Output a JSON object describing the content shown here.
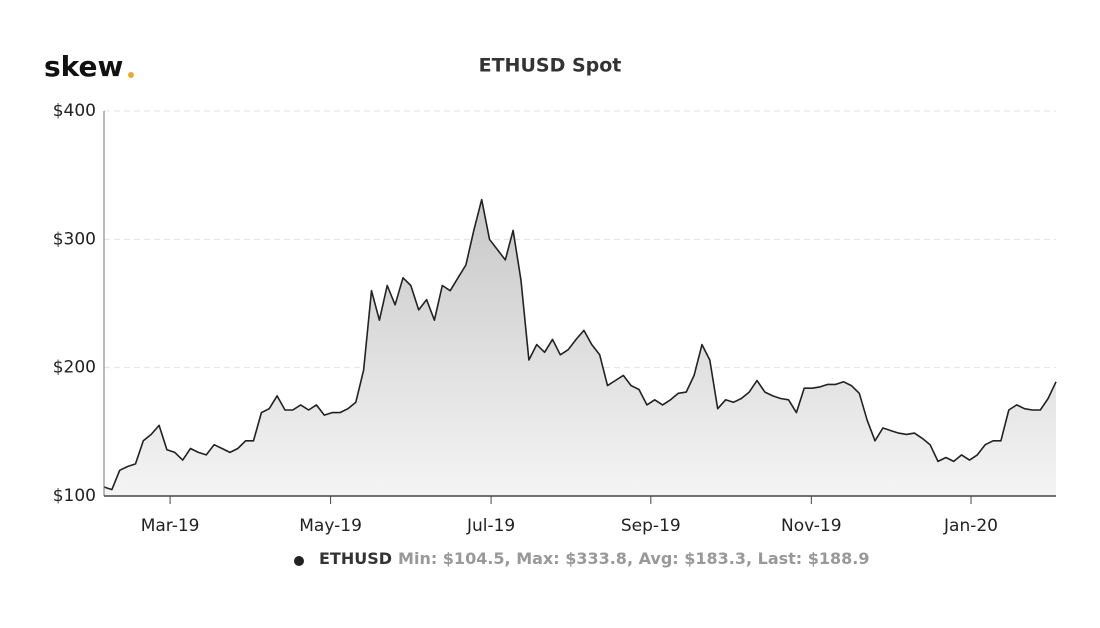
{
  "chart_data": {
    "type": "line",
    "logo": "skew",
    "title": "ETHUSD Spot",
    "legend_stats": "Min: $104.5, Max: $333.8, Avg: $183.3, Last: $188.9",
    "series": [
      {
        "name": "ETHUSD",
        "color": "#222222",
        "values": [
          107,
          105,
          120,
          123,
          125,
          143,
          148,
          155,
          136,
          134,
          128,
          137,
          134,
          132,
          140,
          137,
          134,
          137,
          143,
          143,
          165,
          168,
          178,
          167,
          167,
          171,
          167,
          171,
          163,
          165,
          165,
          168,
          173,
          198,
          260,
          237,
          264,
          249,
          270,
          264,
          245,
          253,
          237,
          264,
          260,
          270,
          280,
          307,
          331,
          300,
          292,
          284,
          307,
          268,
          206,
          218,
          212,
          222,
          210,
          214,
          222,
          229,
          218,
          210,
          186,
          190,
          194,
          186,
          183,
          171,
          175,
          171,
          175,
          180,
          181,
          194,
          218,
          206,
          168,
          175,
          173,
          176,
          181,
          190,
          181,
          178,
          176,
          175,
          165,
          184,
          184,
          185,
          187,
          187,
          189,
          186,
          180,
          159,
          143,
          153,
          151,
          149,
          148,
          149,
          145,
          140,
          127,
          130,
          127,
          132,
          128,
          132,
          140,
          143,
          143,
          167,
          171,
          168,
          167,
          167,
          176,
          189
        ]
      }
    ],
    "xlim": [
      0,
      121
    ],
    "xticks": [
      {
        "value": 8.4,
        "label": "Mar-19"
      },
      {
        "value": 28.8,
        "label": "May-19"
      },
      {
        "value": 49.2,
        "label": "Jul-19"
      },
      {
        "value": 69.5,
        "label": "Sep-19"
      },
      {
        "value": 89.9,
        "label": "Nov-19"
      },
      {
        "value": 110.2,
        "label": "Jan-20"
      }
    ],
    "ylim": [
      100,
      400
    ],
    "yticks": [
      {
        "value": 100,
        "label": "$100"
      },
      {
        "value": 200,
        "label": "$200"
      },
      {
        "value": 300,
        "label": "$300"
      },
      {
        "value": 400,
        "label": "$400"
      }
    ],
    "grid": true
  }
}
